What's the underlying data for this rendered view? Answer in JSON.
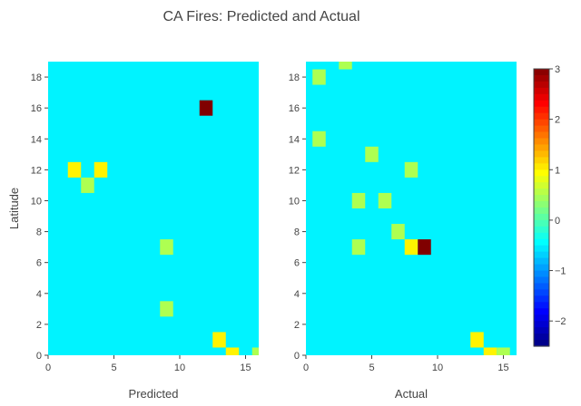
{
  "chart_data": {
    "type": "heatmap",
    "title": "CA Fires: Predicted and Actual",
    "panels": [
      {
        "xlabel": "Predicted",
        "ylabel": "Latitude",
        "xlim": [
          0,
          16
        ],
        "ylim": [
          0,
          19
        ],
        "xticks": [
          0,
          5,
          10,
          15
        ],
        "yticks": [
          0,
          2,
          4,
          6,
          8,
          10,
          12,
          14,
          16,
          18
        ],
        "background_value": -0.5,
        "cells": [
          {
            "x": 12,
            "y": 16,
            "value": 3
          },
          {
            "x": 2,
            "y": 12,
            "value": 1
          },
          {
            "x": 4,
            "y": 12,
            "value": 1
          },
          {
            "x": 3,
            "y": 11,
            "value": 0.5
          },
          {
            "x": 9,
            "y": 7,
            "value": 0.5
          },
          {
            "x": 9,
            "y": 3,
            "value": 0.5
          },
          {
            "x": 13,
            "y": 1,
            "value": 1
          },
          {
            "x": 14,
            "y": 0,
            "value": 1
          },
          {
            "x": 16,
            "y": 0,
            "value": 0.5
          }
        ]
      },
      {
        "xlabel": "Actual",
        "ylabel": "",
        "xlim": [
          0,
          16
        ],
        "ylim": [
          0,
          19
        ],
        "xticks": [
          0,
          5,
          10,
          15
        ],
        "yticks": [
          0,
          2,
          4,
          6,
          8,
          10,
          12,
          14,
          16,
          18
        ],
        "background_value": -0.5,
        "cells": [
          {
            "x": 3,
            "y": 19,
            "value": 0.5
          },
          {
            "x": 1,
            "y": 18,
            "value": 0.5
          },
          {
            "x": 1,
            "y": 14,
            "value": 0.5
          },
          {
            "x": 5,
            "y": 13,
            "value": 0.5
          },
          {
            "x": 8,
            "y": 12,
            "value": 0.5
          },
          {
            "x": 4,
            "y": 10,
            "value": 0.5
          },
          {
            "x": 6,
            "y": 10,
            "value": 0.5
          },
          {
            "x": 7,
            "y": 8,
            "value": 0.5
          },
          {
            "x": 4,
            "y": 7,
            "value": 0.5
          },
          {
            "x": 8,
            "y": 7,
            "value": 1
          },
          {
            "x": 9,
            "y": 7,
            "value": 3
          },
          {
            "x": 13,
            "y": 1,
            "value": 1
          },
          {
            "x": 14,
            "y": 0,
            "value": 1
          },
          {
            "x": 15,
            "y": 0,
            "value": 0.5
          }
        ]
      }
    ],
    "colorbar": {
      "range": [
        -2.5,
        3
      ],
      "ticks": [
        3,
        2,
        1,
        0,
        -1,
        -2
      ],
      "tick_labels": [
        "3",
        "2",
        "1",
        "0",
        "−1",
        "−2"
      ],
      "colorscale": "jet"
    }
  }
}
